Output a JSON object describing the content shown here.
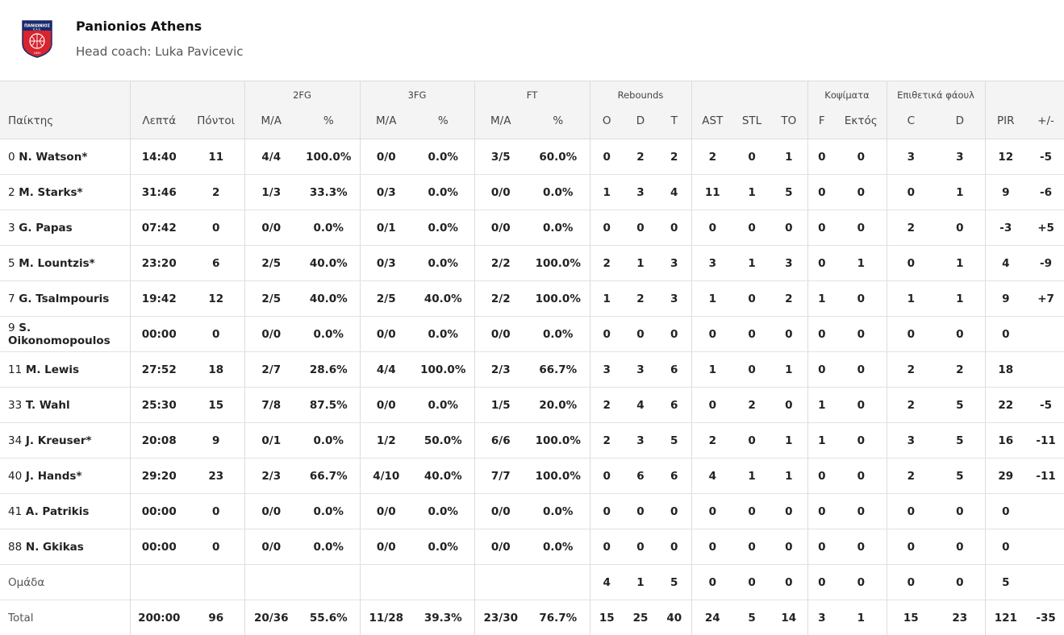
{
  "team": {
    "name": "Panionios Athens",
    "head_coach": "Head coach: Luka Pavicevic",
    "logo_text": "ΠΑΝΙΩΝΙΟΣ",
    "logo_sub": "Κ.Α.Ε.",
    "logo_year": "1890",
    "colors": {
      "red": "#d7242e",
      "navy": "#1b2a6b",
      "accent": "#e8e8e8"
    }
  },
  "groups": {
    "fg2": "2FG",
    "fg3": "3FG",
    "ft": "FT",
    "rebounds": "Rebounds",
    "blocks": "Κοψίματα",
    "fouls": "Επιθετικά φάουλ"
  },
  "columns": {
    "player": "Παίκτης",
    "minutes": "Λεπτά",
    "points": "Πόντοι",
    "fg2_ma": "M/A",
    "fg2_pct": "%",
    "fg3_ma": "M/A",
    "fg3_pct": "%",
    "ft_ma": "M/A",
    "ft_pct": "%",
    "reb_o": "O",
    "reb_d": "D",
    "reb_t": "T",
    "ast": "AST",
    "stl": "STL",
    "to": "TO",
    "blk_f": "F",
    "blk_a": "Εκτός",
    "foul_c": "C",
    "foul_d": "D",
    "pir": "PIR",
    "pm": "+/-"
  },
  "players": [
    [
      "0",
      "N. Watson*",
      "14:40",
      "11",
      "4/4",
      "100.0%",
      "0/0",
      "0.0%",
      "3/5",
      "60.0%",
      "0",
      "2",
      "2",
      "2",
      "0",
      "1",
      "0",
      "0",
      "3",
      "3",
      "12",
      "-5"
    ],
    [
      "2",
      "M. Starks*",
      "31:46",
      "2",
      "1/3",
      "33.3%",
      "0/3",
      "0.0%",
      "0/0",
      "0.0%",
      "1",
      "3",
      "4",
      "11",
      "1",
      "5",
      "0",
      "0",
      "0",
      "1",
      "9",
      "-6"
    ],
    [
      "3",
      "G. Papas",
      "07:42",
      "0",
      "0/0",
      "0.0%",
      "0/1",
      "0.0%",
      "0/0",
      "0.0%",
      "0",
      "0",
      "0",
      "0",
      "0",
      "0",
      "0",
      "0",
      "2",
      "0",
      "-3",
      "+5"
    ],
    [
      "5",
      "M. Lountzis*",
      "23:20",
      "6",
      "2/5",
      "40.0%",
      "0/3",
      "0.0%",
      "2/2",
      "100.0%",
      "2",
      "1",
      "3",
      "3",
      "1",
      "3",
      "0",
      "1",
      "0",
      "1",
      "4",
      "-9"
    ],
    [
      "7",
      "G. Tsalmpouris",
      "19:42",
      "12",
      "2/5",
      "40.0%",
      "2/5",
      "40.0%",
      "2/2",
      "100.0%",
      "1",
      "2",
      "3",
      "1",
      "0",
      "2",
      "1",
      "0",
      "1",
      "1",
      "9",
      "+7"
    ],
    [
      "9",
      "S. Oikonomopoulos",
      "00:00",
      "0",
      "0/0",
      "0.0%",
      "0/0",
      "0.0%",
      "0/0",
      "0.0%",
      "0",
      "0",
      "0",
      "0",
      "0",
      "0",
      "0",
      "0",
      "0",
      "0",
      "0",
      ""
    ],
    [
      "11",
      "M. Lewis",
      "27:52",
      "18",
      "2/7",
      "28.6%",
      "4/4",
      "100.0%",
      "2/3",
      "66.7%",
      "3",
      "3",
      "6",
      "1",
      "0",
      "1",
      "0",
      "0",
      "2",
      "2",
      "18",
      ""
    ],
    [
      "33",
      "T. Wahl",
      "25:30",
      "15",
      "7/8",
      "87.5%",
      "0/0",
      "0.0%",
      "1/5",
      "20.0%",
      "2",
      "4",
      "6",
      "0",
      "2",
      "0",
      "1",
      "0",
      "2",
      "5",
      "22",
      "-5"
    ],
    [
      "34",
      "J. Kreuser*",
      "20:08",
      "9",
      "0/1",
      "0.0%",
      "1/2",
      "50.0%",
      "6/6",
      "100.0%",
      "2",
      "3",
      "5",
      "2",
      "0",
      "1",
      "1",
      "0",
      "3",
      "5",
      "16",
      "-11"
    ],
    [
      "40",
      "J. Hands*",
      "29:20",
      "23",
      "2/3",
      "66.7%",
      "4/10",
      "40.0%",
      "7/7",
      "100.0%",
      "0",
      "6",
      "6",
      "4",
      "1",
      "1",
      "0",
      "0",
      "2",
      "5",
      "29",
      "-11"
    ],
    [
      "41",
      "A. Patrikis",
      "00:00",
      "0",
      "0/0",
      "0.0%",
      "0/0",
      "0.0%",
      "0/0",
      "0.0%",
      "0",
      "0",
      "0",
      "0",
      "0",
      "0",
      "0",
      "0",
      "0",
      "0",
      "0",
      ""
    ],
    [
      "88",
      "N. Gkikas",
      "00:00",
      "0",
      "0/0",
      "0.0%",
      "0/0",
      "0.0%",
      "0/0",
      "0.0%",
      "0",
      "0",
      "0",
      "0",
      "0",
      "0",
      "0",
      "0",
      "0",
      "0",
      "0",
      ""
    ]
  ],
  "team_row": [
    "Ομάδα",
    "",
    "",
    "",
    "",
    "",
    "",
    "",
    "",
    "4",
    "1",
    "5",
    "0",
    "0",
    "0",
    "0",
    "0",
    "0",
    "0",
    "5",
    ""
  ],
  "total_row": [
    "Total",
    "200:00",
    "96",
    "20/36",
    "55.6%",
    "11/28",
    "39.3%",
    "23/30",
    "76.7%",
    "15",
    "25",
    "40",
    "24",
    "5",
    "14",
    "3",
    "1",
    "15",
    "23",
    "121",
    "-35"
  ]
}
